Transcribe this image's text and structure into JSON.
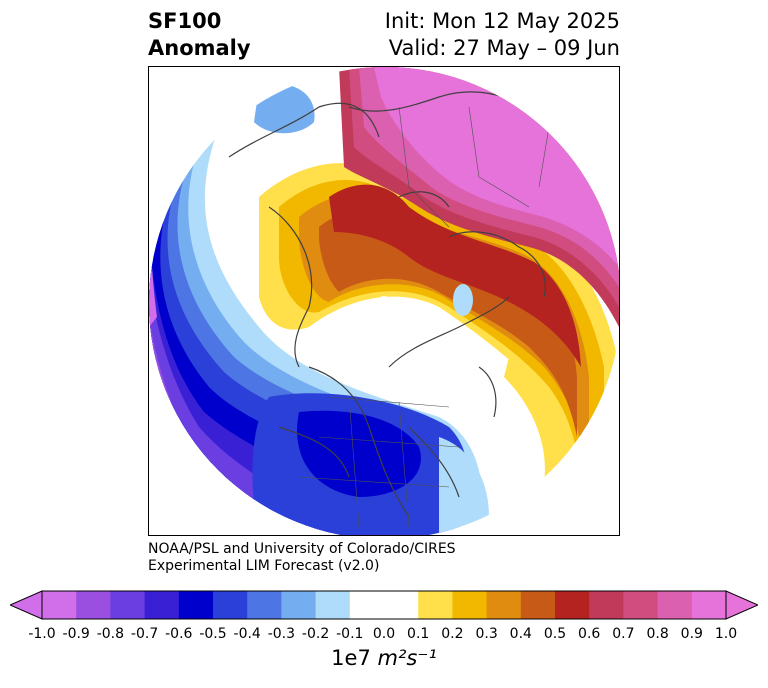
{
  "title": {
    "variable": "SF100",
    "kind": "Anomaly",
    "init": "Init: Mon 12 May 2025",
    "valid": "Valid: 27 May – 09 Jun"
  },
  "credit": {
    "line1": "NOAA/PSL and University of Colorado/CIRES",
    "line2": "Experimental LIM Forecast (v2.0)"
  },
  "colorbar": {
    "unit_prefix": "1e7 ",
    "unit_text": "m²s⁻¹",
    "ticks": [
      "-1.0",
      "-0.9",
      "-0.8",
      "-0.7",
      "-0.6",
      "-0.5",
      "-0.4",
      "-0.3",
      "-0.2",
      "-0.1",
      "0.0",
      "0.1",
      "0.2",
      "0.3",
      "0.4",
      "0.5",
      "0.6",
      "0.7",
      "0.8",
      "0.9",
      "1.0"
    ],
    "colors": [
      "#d16ee9",
      "#9b4fe0",
      "#6a3ee0",
      "#3a20d5",
      "#0000cc",
      "#2a40d8",
      "#4d75e3",
      "#75aef0",
      "#aedcfa",
      "#ffffff",
      "#ffffff",
      "#ffe04a",
      "#f2b800",
      "#e08c10",
      "#c85a18",
      "#b4231f",
      "#c23a5a",
      "#d14d80",
      "#dc60b0",
      "#e673da"
    ],
    "under_color": "#d16ee9",
    "over_color": "#e673da"
  },
  "map": {
    "projection": "north-polar-stereographic",
    "coastline_color": "#404040"
  }
}
